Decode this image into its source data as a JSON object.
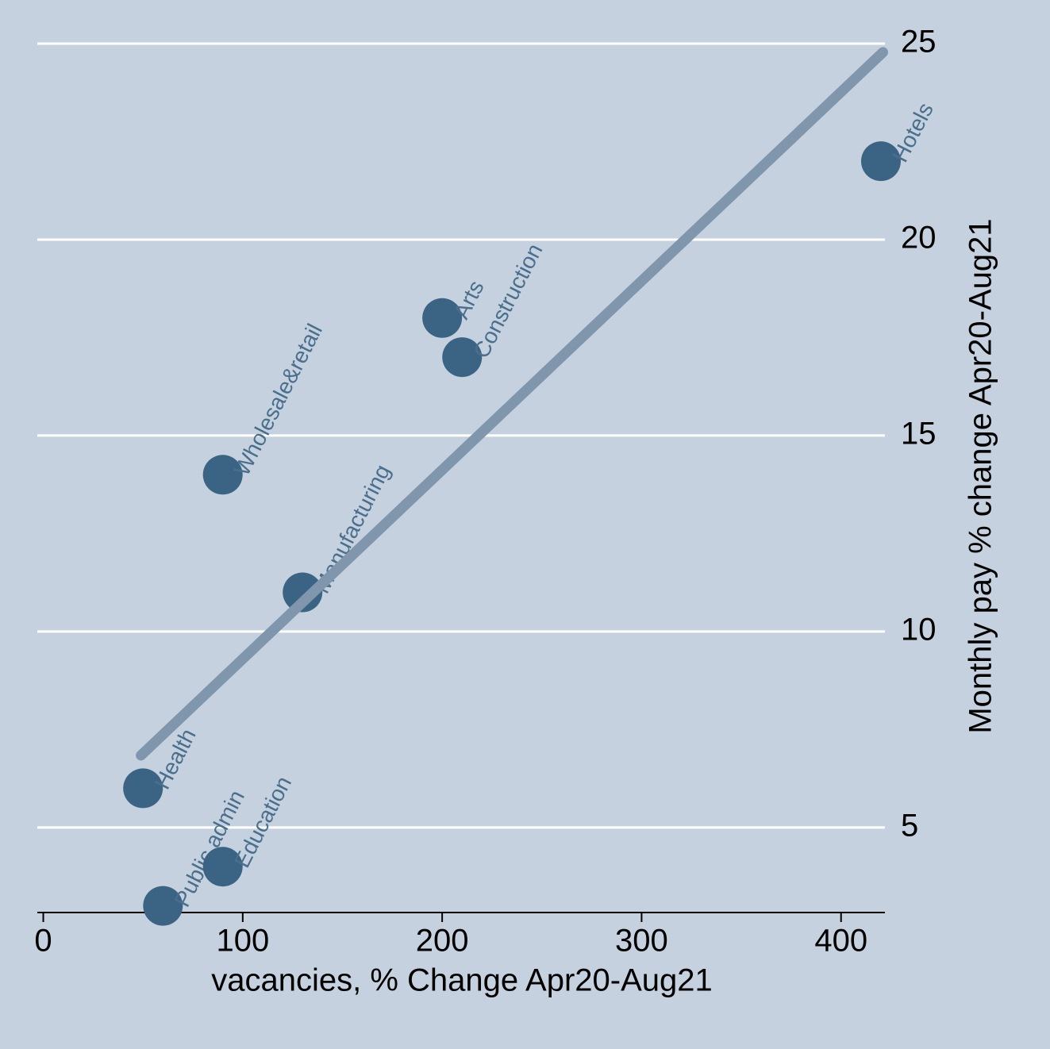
{
  "chart_data": {
    "type": "scatter",
    "x_label": "vacancies, % Change Apr20-Aug21",
    "y_label": "Monthly pay % change Apr20-Aug21",
    "labels": [
      "Hotels",
      "Arts",
      "Construction",
      "Wholesale&retail",
      "Manufacturing",
      "Health",
      "Public admin",
      "Education"
    ],
    "x": [
      420,
      200,
      210,
      90,
      130,
      50,
      60,
      90
    ],
    "values": [
      22,
      18,
      17,
      14,
      11,
      6,
      3,
      4
    ],
    "color": "#3b6484",
    "fit": {
      "x": [
        49,
        421
      ],
      "values": [
        6.84,
        24.78
      ],
      "color": "#8096ad"
    },
    "xlim": [
      -3,
      422
    ],
    "xticks": [
      0,
      100,
      200,
      300,
      400
    ],
    "ylim": [
      2.83,
      25
    ],
    "yticks": [
      5,
      10,
      15,
      20,
      25
    ],
    "grid": true
  }
}
